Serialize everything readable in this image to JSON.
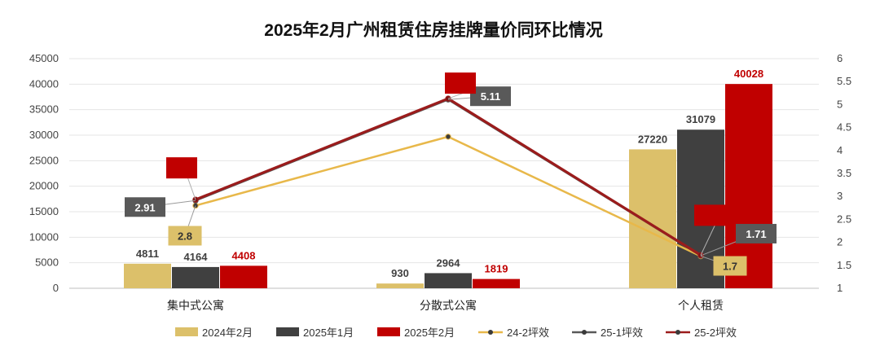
{
  "chart_data": {
    "type": "bar",
    "title": "2025年2月广州租赁住房挂牌量价同环比情况",
    "categories": [
      "集中式公寓",
      "分散式公寓",
      "个人租赁"
    ],
    "left_axis": {
      "min": 0,
      "max": 45000,
      "step": 5000,
      "ticks": [
        "0",
        "5000",
        "10000",
        "15000",
        "20000",
        "25000",
        "30000",
        "35000",
        "40000",
        "45000"
      ]
    },
    "right_axis": {
      "min": 1,
      "max": 6,
      "step": 0.5,
      "ticks": [
        "1",
        "1.5",
        "2",
        "2.5",
        "3",
        "3.5",
        "4",
        "4.5",
        "5",
        "5.5",
        "6"
      ]
    },
    "series": [
      {
        "name": "2024年2月",
        "kind": "bar",
        "axis": "left",
        "color": "#dcc06a",
        "values": [
          4811,
          930,
          27220
        ],
        "labels": [
          "4811",
          "930",
          "27220"
        ]
      },
      {
        "name": "2025年1月",
        "kind": "bar",
        "axis": "left",
        "color": "#404040",
        "values": [
          4164,
          2964,
          31079
        ],
        "labels": [
          "4164",
          "2964",
          "31079"
        ]
      },
      {
        "name": "2025年2月",
        "kind": "bar",
        "axis": "left",
        "color": "#c00000",
        "values": [
          4408,
          1819,
          40028
        ],
        "labels": [
          "4408",
          "1819",
          "40028"
        ]
      },
      {
        "name": "24-2坪效",
        "kind": "line",
        "axis": "right",
        "color": "#e8b84a",
        "values": [
          2.8,
          4.3,
          1.7
        ],
        "labels": [
          "2.8",
          "",
          "1.7"
        ]
      },
      {
        "name": "25-1坪效",
        "kind": "line",
        "axis": "right",
        "color": "#595959",
        "values": [
          2.91,
          5.11,
          1.71
        ],
        "labels": [
          "2.91",
          "5.11",
          "1.71"
        ]
      },
      {
        "name": "25-2坪效",
        "kind": "line",
        "axis": "right",
        "color": "#9b1c1c",
        "values": [
          2.93,
          5.13,
          1.72
        ],
        "labels": [
          "",
          "",
          ""
        ]
      }
    ],
    "grid": true,
    "legend": "bottom"
  }
}
